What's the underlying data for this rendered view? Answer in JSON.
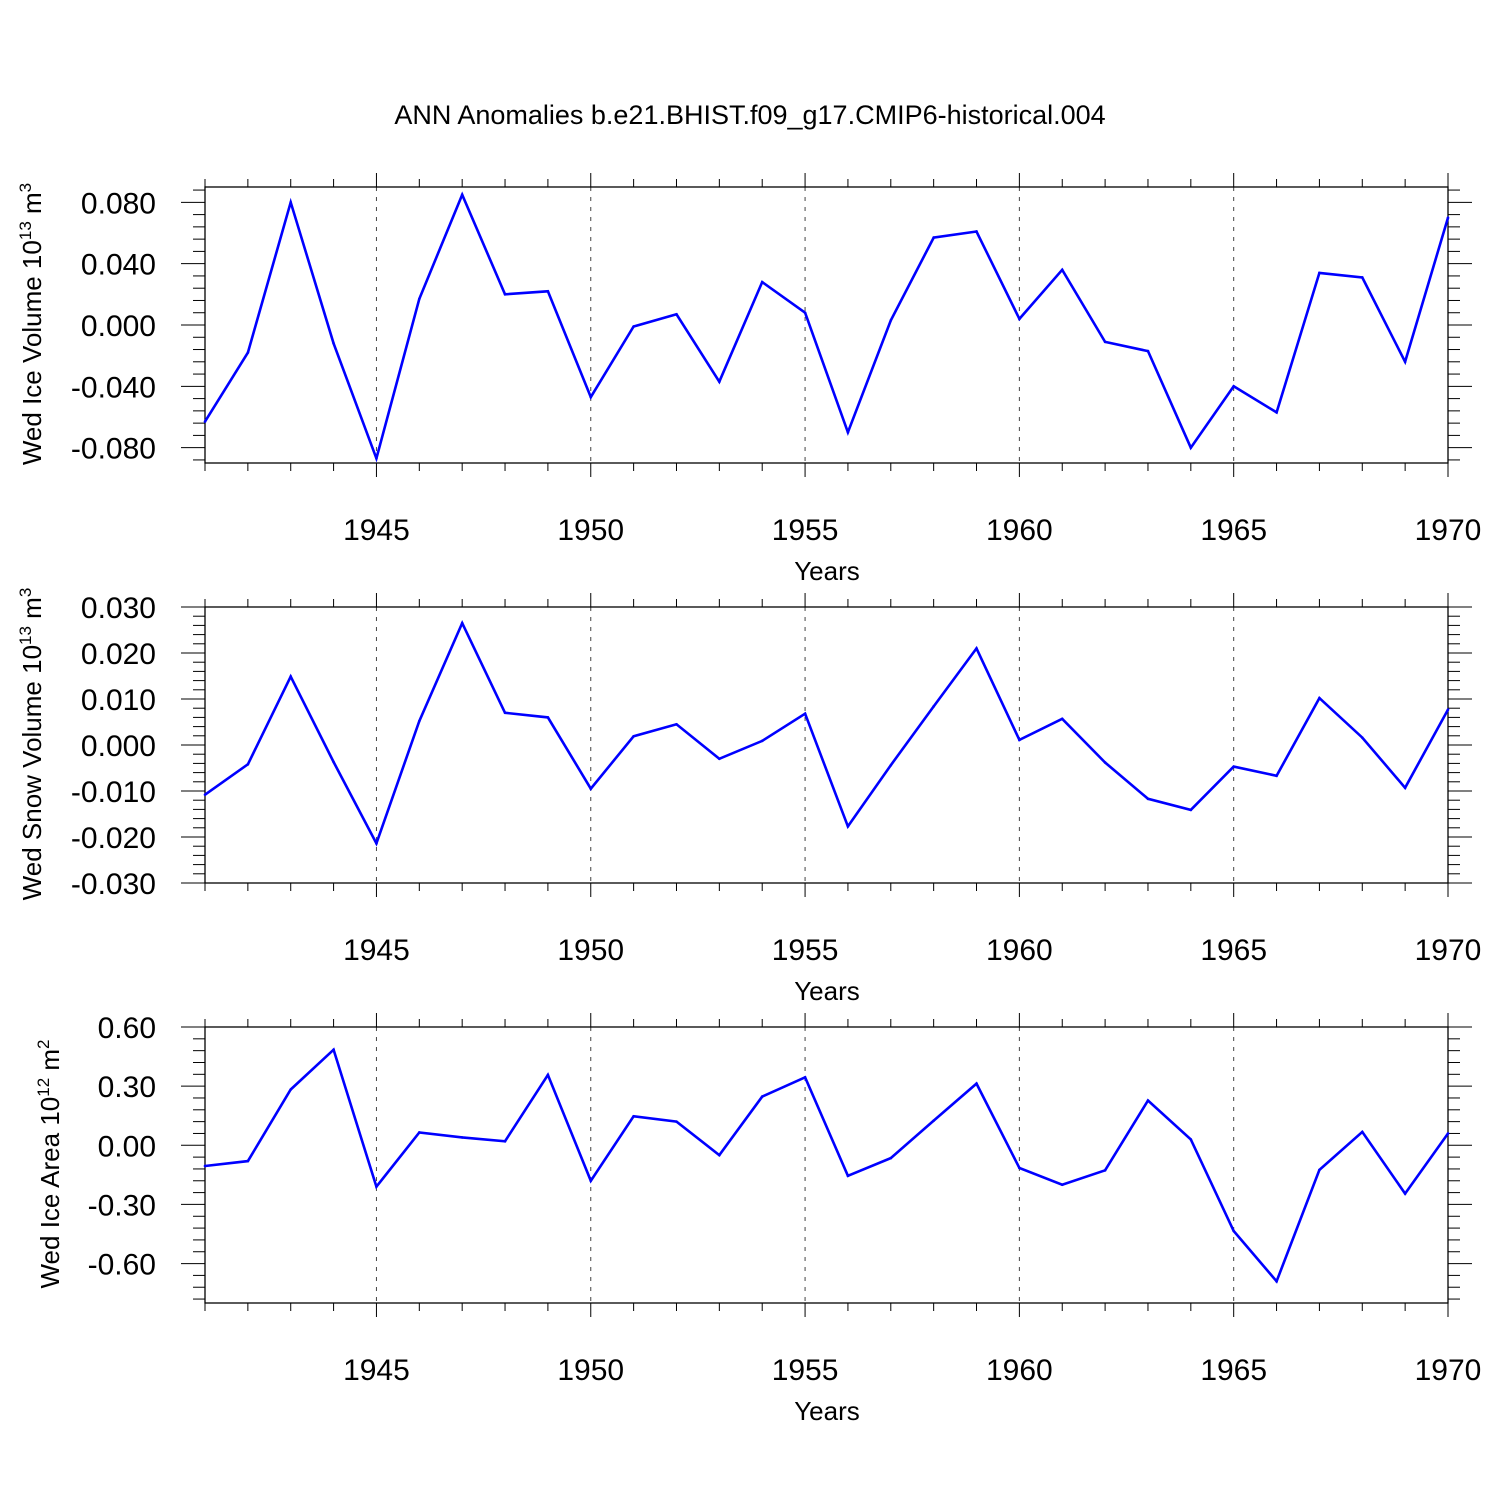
{
  "title": "ANN Anomalies b.e21.BHIST.f09_g17.CMIP6-historical.004",
  "line_color": "#0000ff",
  "chart_data": [
    {
      "type": "line",
      "title": "",
      "xlabel": "Years",
      "ylabel_main": "Wed Ice Volume 10",
      "ylabel_exp": "13",
      "ylabel_unit": " m",
      "ylabel_unit_exp": "3",
      "xlim": [
        1941,
        1970
      ],
      "ylim": [
        -0.09,
        0.09
      ],
      "yticks": [
        -0.08,
        -0.04,
        0.0,
        0.04,
        0.08
      ],
      "ytick_labels": [
        "-0.080",
        "-0.040",
        "0.000",
        "0.040",
        "0.080"
      ],
      "xticks": [
        1945,
        1950,
        1955,
        1960,
        1965,
        1970
      ],
      "xtick_labels": [
        "1945",
        "1950",
        "1955",
        "1960",
        "1965",
        "1970"
      ],
      "x": [
        1941,
        1942,
        1943,
        1944,
        1945,
        1946,
        1947,
        1948,
        1949,
        1950,
        1951,
        1952,
        1953,
        1954,
        1955,
        1956,
        1957,
        1958,
        1959,
        1960,
        1961,
        1962,
        1963,
        1964,
        1965,
        1966,
        1967,
        1968,
        1969,
        1970
      ],
      "series": [
        {
          "values": [
            -0.063,
            -0.018,
            0.08,
            -0.012,
            -0.087,
            0.017,
            0.085,
            0.02,
            0.022,
            -0.047,
            -0.001,
            0.007,
            -0.037,
            0.028,
            0.008,
            -0.07,
            0.003,
            0.057,
            0.061,
            0.004,
            0.036,
            -0.011,
            -0.017,
            -0.08,
            -0.04,
            -0.057,
            0.034,
            0.031,
            -0.024,
            0.07
          ]
        }
      ]
    },
    {
      "type": "line",
      "title": "",
      "xlabel": "Years",
      "ylabel_main": "Wed Snow Volume 10",
      "ylabel_exp": "13",
      "ylabel_unit": " m",
      "ylabel_unit_exp": "3",
      "xlim": [
        1941,
        1970
      ],
      "ylim": [
        -0.03,
        0.03
      ],
      "yticks": [
        -0.03,
        -0.02,
        -0.01,
        0.0,
        0.01,
        0.02,
        0.03
      ],
      "ytick_labels": [
        "-0.030",
        "-0.020",
        "-0.010",
        "0.000",
        "0.010",
        "0.020",
        "0.030"
      ],
      "xticks": [
        1945,
        1950,
        1955,
        1960,
        1965,
        1970
      ],
      "xtick_labels": [
        "1945",
        "1950",
        "1955",
        "1960",
        "1965",
        "1970"
      ],
      "x": [
        1941,
        1942,
        1943,
        1944,
        1945,
        1946,
        1947,
        1948,
        1949,
        1950,
        1951,
        1952,
        1953,
        1954,
        1955,
        1956,
        1957,
        1958,
        1959,
        1960,
        1961,
        1962,
        1963,
        1964,
        1965,
        1966,
        1967,
        1968,
        1969,
        1970
      ],
      "series": [
        {
          "values": [
            -0.0108,
            -0.0042,
            0.0149,
            -0.0037,
            -0.0214,
            0.0052,
            0.0265,
            0.007,
            0.006,
            -0.0095,
            0.0019,
            0.0045,
            -0.003,
            0.0009,
            0.0068,
            -0.0177,
            -0.0044,
            0.0084,
            0.021,
            0.0011,
            0.0057,
            -0.0038,
            -0.0117,
            -0.0141,
            -0.0047,
            -0.0067,
            0.0102,
            0.0016,
            -0.0093,
            0.0077
          ]
        }
      ]
    },
    {
      "type": "line",
      "title": "",
      "xlabel": "Years",
      "ylabel_main": "Wed Ice Area 10",
      "ylabel_exp": "12",
      "ylabel_unit": " m",
      "ylabel_unit_exp": "2",
      "xlim": [
        1941,
        1970
      ],
      "ylim": [
        -0.8,
        0.6
      ],
      "yticks": [
        -0.6,
        -0.3,
        0.0,
        0.3,
        0.6
      ],
      "ytick_labels": [
        "-0.60",
        "-0.30",
        "0.00",
        "0.30",
        "0.60"
      ],
      "xticks": [
        1945,
        1950,
        1955,
        1960,
        1965,
        1970
      ],
      "xtick_labels": [
        "1945",
        "1950",
        "1955",
        "1960",
        "1965",
        "1970"
      ],
      "x": [
        1941,
        1942,
        1943,
        1944,
        1945,
        1946,
        1947,
        1948,
        1949,
        1950,
        1951,
        1952,
        1953,
        1954,
        1955,
        1956,
        1957,
        1958,
        1959,
        1960,
        1961,
        1962,
        1963,
        1964,
        1965,
        1966,
        1967,
        1968,
        1969,
        1970
      ],
      "series": [
        {
          "values": [
            -0.105,
            -0.08,
            0.283,
            0.485,
            -0.21,
            0.065,
            0.04,
            0.02,
            0.357,
            -0.18,
            0.147,
            0.12,
            -0.05,
            0.247,
            0.345,
            -0.155,
            -0.065,
            0.125,
            0.313,
            -0.115,
            -0.2,
            -0.127,
            0.227,
            0.03,
            -0.435,
            -0.69,
            -0.125,
            0.068,
            -0.245,
            0.06
          ]
        }
      ]
    }
  ]
}
